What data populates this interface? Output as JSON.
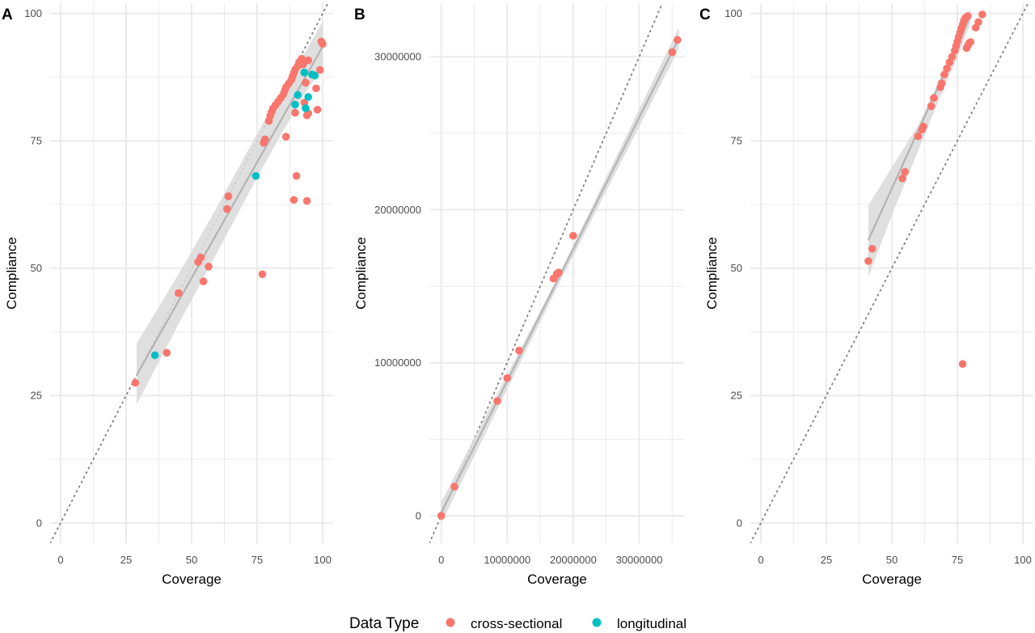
{
  "colors": {
    "cross_sectional": "#F8766D",
    "longitudinal": "#00BFC4",
    "grid": "#EBEBEB",
    "fit_line": "#B3B3B3",
    "ribbon": "#D9D9D9",
    "identity_line": "#808080"
  },
  "legend": {
    "title": "Data Type",
    "items": [
      {
        "label": "cross-sectional",
        "color": "#F8766D"
      },
      {
        "label": "longitudinal",
        "color": "#00BFC4"
      }
    ]
  },
  "chart_data": [
    {
      "panel": "A",
      "type": "scatter",
      "xlabel": "Coverage",
      "ylabel": "Compliance",
      "xlim": [
        -4,
        104
      ],
      "ylim": [
        -4,
        102
      ],
      "xticks": [
        0,
        25,
        50,
        75,
        100
      ],
      "yticks": [
        0,
        25,
        50,
        75,
        100
      ],
      "xtick_labels": [
        "0",
        "25",
        "50",
        "75",
        "100"
      ],
      "ytick_labels": [
        "0",
        "25",
        "50",
        "75",
        "100"
      ],
      "grid": true,
      "identity_line": true,
      "fit": {
        "x_start": 29,
        "x_end": 100,
        "y_start": 29,
        "y_end": 93.5
      },
      "ribbon_upper": [
        [
          29,
          35.2
        ],
        [
          45,
          48.8
        ],
        [
          60,
          62.3
        ],
        [
          75,
          76.4
        ],
        [
          85,
          85.6
        ],
        [
          93,
          92.1
        ],
        [
          100,
          98.4
        ]
      ],
      "ribbon_lower": [
        [
          29,
          23.2
        ],
        [
          45,
          39.0
        ],
        [
          60,
          53.3
        ],
        [
          75,
          67.8
        ],
        [
          85,
          77.0
        ],
        [
          93,
          84.1
        ],
        [
          100,
          89.4
        ]
      ],
      "series": [
        {
          "name": "cross-sectional",
          "points": [
            [
              28.5,
              27.5
            ],
            [
              40.5,
              33.4
            ],
            [
              45,
              45.1
            ],
            [
              52.5,
              51.2
            ],
            [
              53.5,
              52.1
            ],
            [
              54.5,
              47.4
            ],
            [
              56.5,
              50.3
            ],
            [
              63.5,
              61.6
            ],
            [
              64,
              64.1
            ],
            [
              77,
              48.8
            ],
            [
              77.5,
              74.6
            ],
            [
              78,
              75.3
            ],
            [
              79.5,
              78.9
            ],
            [
              80,
              79.9
            ],
            [
              80.5,
              80.6
            ],
            [
              81,
              81.3
            ],
            [
              82,
              82.0
            ],
            [
              83,
              82.7
            ],
            [
              84,
              83.4
            ],
            [
              85,
              84.1
            ],
            [
              85.5,
              84.8
            ],
            [
              86,
              85.5
            ],
            [
              87,
              86.2
            ],
            [
              88,
              86.9
            ],
            [
              88.5,
              87.6
            ],
            [
              89,
              88.3
            ],
            [
              89.5,
              89.0
            ],
            [
              90.5,
              89.7
            ],
            [
              91,
              90.4
            ],
            [
              92,
              91.1
            ],
            [
              86,
              75.8
            ],
            [
              89,
              63.4
            ],
            [
              90,
              68.1
            ],
            [
              89.5,
              80.5
            ],
            [
              93.5,
              86.4
            ],
            [
              94,
              80.0
            ],
            [
              94.5,
              80.4
            ],
            [
              93,
              82.5
            ],
            [
              94,
              63.2
            ],
            [
              94.5,
              90.8
            ],
            [
              97.5,
              85.3
            ],
            [
              98,
              81.1
            ],
            [
              99,
              88.9
            ],
            [
              99.5,
              94.5
            ],
            [
              100,
              94.0
            ],
            [
              92.5,
              90.0
            ],
            [
              91.5,
              90.2
            ]
          ]
        },
        {
          "name": "longitudinal",
          "points": [
            [
              36,
              32.9
            ],
            [
              74.5,
              68.1
            ],
            [
              89.5,
              82.1
            ],
            [
              90.5,
              84.0
            ],
            [
              93,
              88.4
            ],
            [
              93.5,
              81.4
            ],
            [
              94.5,
              83.6
            ],
            [
              96,
              88.0
            ],
            [
              97,
              87.8
            ]
          ]
        }
      ]
    },
    {
      "panel": "B",
      "type": "scatter",
      "xlabel": "Coverage",
      "ylabel": "Compliance",
      "xlim": [
        -1800000,
        36800000
      ],
      "ylim": [
        -1800000,
        33500000
      ],
      "xticks": [
        0,
        10000000,
        20000000,
        30000000
      ],
      "yticks": [
        0,
        10000000,
        20000000,
        30000000
      ],
      "xtick_labels": [
        "0",
        "10000000",
        "20000000",
        "30000000"
      ],
      "ytick_labels": [
        "0",
        "10000000",
        "20000000",
        "30000000"
      ],
      "grid": true,
      "identity_line": true,
      "fit": {
        "x_start": 0,
        "x_end": 36000000,
        "y_start": 200000,
        "y_end": 31200000
      },
      "ribbon_upper": [
        [
          0,
          900000
        ],
        [
          18000000,
          15900000
        ],
        [
          36000000,
          31900000
        ]
      ],
      "ribbon_lower": [
        [
          0,
          -500000
        ],
        [
          18000000,
          15300000
        ],
        [
          36000000,
          30500000
        ]
      ],
      "series": [
        {
          "name": "cross-sectional",
          "points": [
            [
              0,
              0
            ],
            [
              2000000,
              1900000
            ],
            [
              8500000,
              7500000
            ],
            [
              10000000,
              9000000
            ],
            [
              11800000,
              10800000
            ],
            [
              17000000,
              15500000
            ],
            [
              17500000,
              15800000
            ],
            [
              17800000,
              15900000
            ],
            [
              20000000,
              18300000
            ],
            [
              35000000,
              30300000
            ],
            [
              35800000,
              31100000
            ]
          ]
        }
      ]
    },
    {
      "panel": "C",
      "type": "scatter",
      "xlabel": "Coverage",
      "ylabel": "Compliance",
      "xlim": [
        -4,
        104
      ],
      "ylim": [
        -4,
        102
      ],
      "xticks": [
        0,
        25,
        50,
        75,
        100
      ],
      "yticks": [
        0,
        25,
        50,
        75,
        100
      ],
      "xtick_labels": [
        "0",
        "25",
        "50",
        "75",
        "100"
      ],
      "ytick_labels": [
        "0",
        "25",
        "50",
        "75",
        "100"
      ],
      "grid": true,
      "identity_line": true,
      "fit": {
        "x_start": 41,
        "x_end": 80,
        "y_start": 55.5,
        "y_end": 99.5
      },
      "ribbon_upper": [
        [
          41,
          62.3
        ],
        [
          50,
          69.8
        ],
        [
          60,
          78.0
        ],
        [
          70,
          88.9
        ],
        [
          75,
          94.1
        ],
        [
          80,
          101.0
        ]
      ],
      "ribbon_lower": [
        [
          41,
          48.3
        ],
        [
          50,
          60.4
        ],
        [
          60,
          73.0
        ],
        [
          70,
          85.6
        ],
        [
          75,
          91.3
        ],
        [
          80,
          98.1
        ]
      ],
      "series": [
        {
          "name": "cross-sectional",
          "points": [
            [
              41,
              51.4
            ],
            [
              42.5,
              53.8
            ],
            [
              54,
              67.6
            ],
            [
              55,
              68.9
            ],
            [
              60,
              75.9
            ],
            [
              61.5,
              77.2
            ],
            [
              62,
              77.8
            ],
            [
              65,
              81.8
            ],
            [
              66,
              83.4
            ],
            [
              68.5,
              85.5
            ],
            [
              69,
              86.3
            ],
            [
              70,
              88.0
            ],
            [
              71,
              89.2
            ],
            [
              72,
              90.4
            ],
            [
              73,
              91.5
            ],
            [
              74,
              92.7
            ],
            [
              74.5,
              93.6
            ],
            [
              75,
              94.5
            ],
            [
              75.5,
              95.4
            ],
            [
              76,
              96.2
            ],
            [
              76.5,
              97.0
            ],
            [
              77,
              97.8
            ],
            [
              77.5,
              98.6
            ],
            [
              78,
              99.1
            ],
            [
              79,
              99.5
            ],
            [
              78.5,
              93.2
            ],
            [
              79,
              93.7
            ],
            [
              79.5,
              94.2
            ],
            [
              80,
              94.4
            ],
            [
              82,
              97.2
            ],
            [
              83,
              98.3
            ],
            [
              84.5,
              99.8
            ],
            [
              77,
              31.2
            ]
          ]
        }
      ]
    }
  ]
}
